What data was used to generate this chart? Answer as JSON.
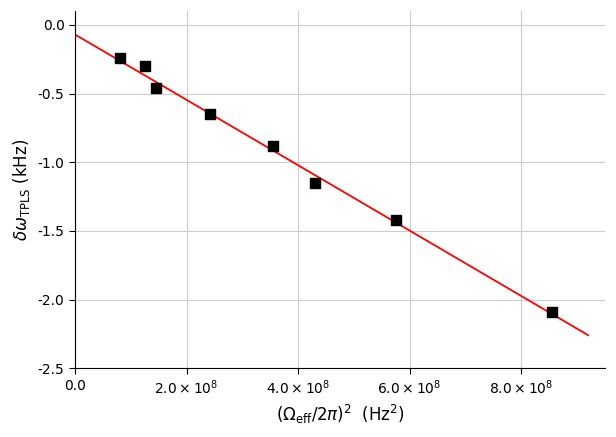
{
  "x_data": [
    80000000.0,
    125000000.0,
    145000000.0,
    242000000.0,
    355000000.0,
    430000000.0,
    575000000.0,
    855000000.0
  ],
  "y_data": [
    -0.24,
    -0.3,
    -0.46,
    -0.65,
    -0.88,
    -1.15,
    -1.42,
    -2.09
  ],
  "fit_slope": -2.38e-09,
  "fit_intercept": -0.07,
  "fit_x_start": 0.0,
  "fit_x_end": 920000000.0,
  "line_color": "#FF0000",
  "marker_color": "#000000",
  "xlabel_text": "($\\Omega_{eff}/2\\pi)^2$  (Hz$^2$)",
  "ylabel_text": "$\\delta\\omega_{TPLS}$ (kHz)",
  "xlim": [
    0.0,
    950000000.0
  ],
  "ylim": [
    -2.5,
    0.1
  ],
  "xticks": [
    0.0,
    200000000.0,
    400000000.0,
    600000000.0,
    800000000.0
  ],
  "yticks": [
    0.0,
    -0.5,
    -1.0,
    -1.5,
    -2.0,
    -2.5
  ],
  "ytick_labels": [
    "0.0",
    "-0.5",
    "-1.0",
    "-1.5",
    "-2.0",
    "-2.5"
  ],
  "bg_color": "#FFFFFF",
  "grid_color": "#CCCCCC"
}
